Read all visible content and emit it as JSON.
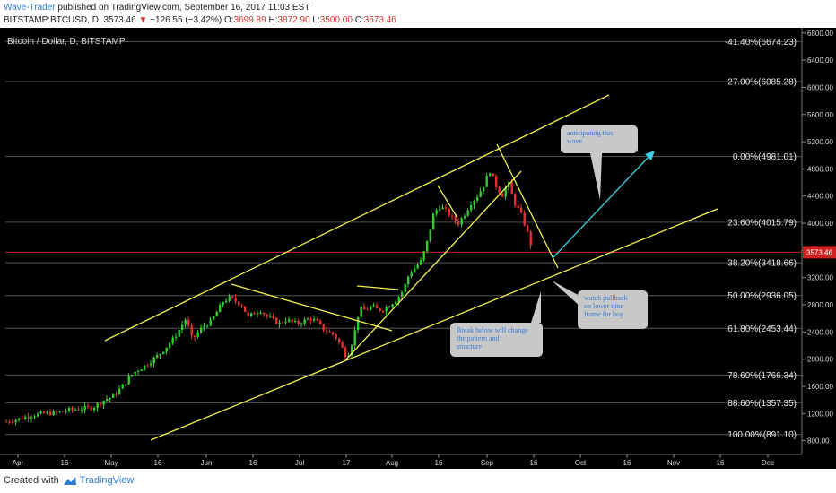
{
  "header": {
    "author": "Wave-Trader",
    "published": " published on TradingView.com, September 16, 2017 11:03 EST",
    "symbol": "BITSTAMP:BTCUSD, D",
    "price": "3573.46",
    "arrow": "▼",
    "change": "−126.55 (−3.42%)",
    "o_label": "O:",
    "o_val": "3699.89",
    "h_label": "H:",
    "h_val": "3872.90",
    "l_label": "L:",
    "l_val": "3500.00",
    "c_label": "C:",
    "c_val": "3573.46"
  },
  "footer": {
    "created_with": "Created with",
    "brand": "TradingView"
  },
  "colors": {
    "background": "#000000",
    "up_candle": "#2ecc2e",
    "down_candle": "#e03030",
    "trendline": "#f0f050",
    "arrow": "#3ed0e8",
    "fib_line": "#555555",
    "price_line": "#d02020",
    "callout_bg": "#c8c8c8",
    "callout_text": "#3a7bd5"
  },
  "chart_data": {
    "type": "candlestick",
    "title": "Bitcoin / Dollar, D, BITSTAMP",
    "ylim": [
      650,
      6850
    ],
    "y_ticks": [
      800,
      1200,
      1600,
      2000,
      2400,
      2800,
      3200,
      3600,
      4000,
      4400,
      4800,
      5200,
      5600,
      6000,
      6400,
      6800
    ],
    "x_labels": [
      "Apr",
      "16",
      "May",
      "16",
      "Jun",
      "16",
      "Jul",
      "17",
      "Aug",
      "16",
      "Sep",
      "16",
      "Oct",
      "16",
      "Nov",
      "16",
      "Dec"
    ],
    "current_price": "3573.46",
    "fib_levels": [
      {
        "label": "-41.40%(6674.23)",
        "price": 6674.23
      },
      {
        "label": "-27.00%(6085.28)",
        "price": 6085.28
      },
      {
        "label": "0.00%(4981.01)",
        "price": 4981.01
      },
      {
        "label": "23.60%(4015.79)",
        "price": 4015.79
      },
      {
        "label": "38.20%(3418.66)",
        "price": 3418.66
      },
      {
        "label": "50.00%(2936.05)",
        "price": 2936.05
      },
      {
        "label": "61.80%(2453.44)",
        "price": 2453.44
      },
      {
        "label": "78.60%(1766.34)",
        "price": 1766.34
      },
      {
        "label": "88.60%(1357.35)",
        "price": 1357.35
      },
      {
        "label": "100.00%(891.10)",
        "price": 891.1
      }
    ],
    "close_path": [
      [
        0,
        1080
      ],
      [
        14,
        1120
      ],
      [
        28,
        1170
      ],
      [
        42,
        1200
      ],
      [
        56,
        1210
      ],
      [
        70,
        1250
      ],
      [
        84,
        1270
      ],
      [
        98,
        1290
      ],
      [
        112,
        1410
      ],
      [
        119,
        1440
      ],
      [
        126,
        1530
      ],
      [
        133,
        1630
      ],
      [
        140,
        1750
      ],
      [
        147,
        1830
      ],
      [
        154,
        1880
      ],
      [
        161,
        1950
      ],
      [
        168,
        2020
      ],
      [
        175,
        2100
      ],
      [
        182,
        2200
      ],
      [
        189,
        2300
      ],
      [
        196,
        2450
      ],
      [
        203,
        2600
      ],
      [
        210,
        2280
      ],
      [
        217,
        2400
      ],
      [
        224,
        2500
      ],
      [
        231,
        2550
      ],
      [
        238,
        2700
      ],
      [
        245,
        2850
      ],
      [
        252,
        2900
      ],
      [
        259,
        2850
      ],
      [
        266,
        2800
      ],
      [
        273,
        2620
      ],
      [
        280,
        2680
      ],
      [
        287,
        2720
      ],
      [
        294,
        2630
      ],
      [
        301,
        2580
      ],
      [
        308,
        2520
      ],
      [
        315,
        2580
      ],
      [
        322,
        2550
      ],
      [
        329,
        2520
      ],
      [
        336,
        2560
      ],
      [
        343,
        2600
      ],
      [
        350,
        2560
      ],
      [
        357,
        2450
      ],
      [
        364,
        2400
      ],
      [
        371,
        2350
      ],
      [
        378,
        2200
      ],
      [
        385,
        2020
      ],
      [
        392,
        2300
      ],
      [
        399,
        2750
      ],
      [
        406,
        2720
      ],
      [
        413,
        2780
      ],
      [
        420,
        2720
      ],
      [
        427,
        2740
      ],
      [
        434,
        2810
      ],
      [
        441,
        2880
      ],
      [
        448,
        3000
      ],
      [
        455,
        3250
      ],
      [
        462,
        3350
      ],
      [
        469,
        3450
      ],
      [
        476,
        3750
      ],
      [
        483,
        4150
      ],
      [
        490,
        4250
      ],
      [
        497,
        4180
      ],
      [
        504,
        4070
      ],
      [
        511,
        4000
      ],
      [
        518,
        4140
      ],
      [
        525,
        4300
      ],
      [
        532,
        4400
      ],
      [
        539,
        4550
      ],
      [
        546,
        4780
      ],
      [
        553,
        4560
      ],
      [
        560,
        4400
      ],
      [
        567,
        4600
      ],
      [
        574,
        4300
      ],
      [
        581,
        4150
      ],
      [
        588,
        3900
      ],
      [
        595,
        3573.46
      ]
    ],
    "annotations": [
      "anticipating this wave",
      "watch pullback on lower time frame for buy",
      "Break below will change the pattern and structure"
    ]
  }
}
